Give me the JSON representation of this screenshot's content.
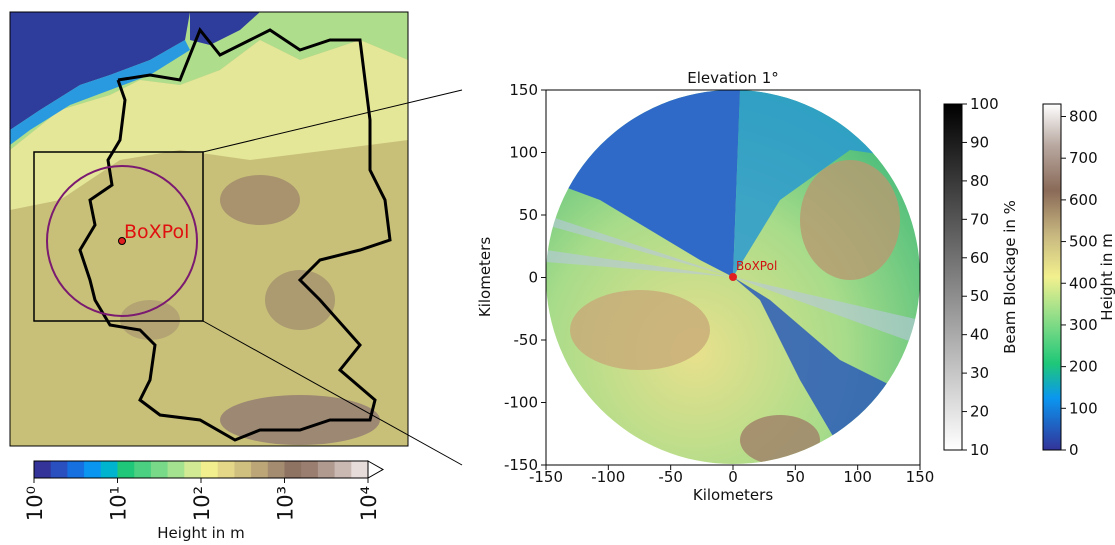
{
  "map": {
    "site_label": "BoXPol",
    "colorbar": {
      "label": "Height in m",
      "lim": [
        1,
        10000
      ],
      "ticks": [
        {
          "value": 1,
          "label": "10⁰"
        },
        {
          "value": 10,
          "label": "10¹"
        },
        {
          "value": 100,
          "label": "10²"
        },
        {
          "value": 1000,
          "label": "10³"
        },
        {
          "value": 10000,
          "label": "10⁴"
        }
      ]
    }
  },
  "radar": {
    "title": "Elevation 1°",
    "xlabel": "Kilometers",
    "ylabel": "Kilometers",
    "site_label": "BoXPol",
    "xlim": [
      -150,
      150
    ],
    "ylim": [
      -150,
      150
    ],
    "xticks": [
      -150,
      -100,
      -50,
      0,
      50,
      100,
      150
    ],
    "yticks": [
      -150,
      -100,
      -50,
      0,
      50,
      100,
      150
    ]
  },
  "blockage_colorbar": {
    "label": "Beam Blockage in %",
    "lim": [
      10,
      100
    ],
    "ticks": [
      10,
      20,
      30,
      40,
      50,
      60,
      70,
      80,
      90,
      100
    ]
  },
  "height_colorbar": {
    "label": "Height in m",
    "lim": [
      0,
      830
    ],
    "ticks": [
      0,
      100,
      200,
      300,
      400,
      500,
      600,
      700,
      800
    ]
  }
}
